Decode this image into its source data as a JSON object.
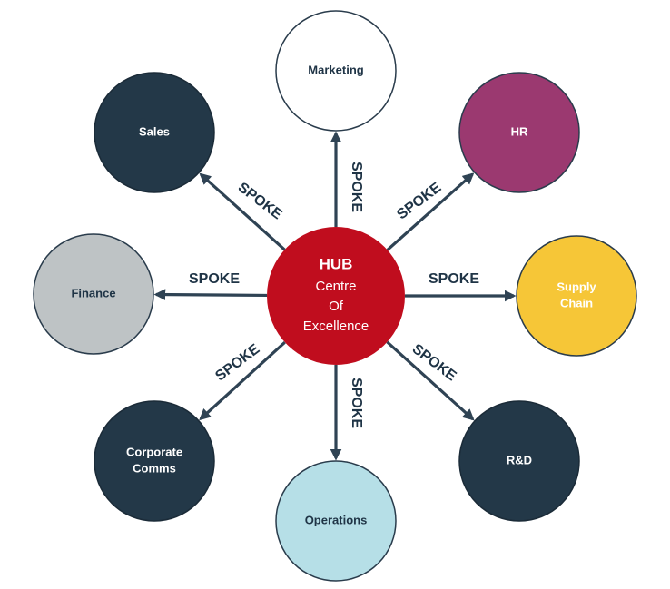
{
  "hub": {
    "title": "HUB",
    "lines": [
      "Centre",
      "Of",
      "Excellence"
    ],
    "color": "#c00d1e"
  },
  "spoke_label": "SPOKE",
  "arrow_color": "#2f4354",
  "nodes": [
    {
      "id": "marketing",
      "lines": [
        "Marketing"
      ],
      "fill": "#ffffff",
      "stroke": "#2a3c4c",
      "text_color": "#1f3446"
    },
    {
      "id": "hr",
      "lines": [
        "HR"
      ],
      "fill": "#9b3970",
      "stroke": "#2a3c4c",
      "text_color": "#ffffff"
    },
    {
      "id": "supply-chain",
      "lines": [
        "Supply",
        "Chain"
      ],
      "fill": "#f6c637",
      "stroke": "#2a3c4c",
      "text_color": "#ffffff"
    },
    {
      "id": "rnd",
      "lines": [
        "R&D"
      ],
      "fill": "#233848",
      "stroke": "#1b2b38",
      "text_color": "#ffffff"
    },
    {
      "id": "operations",
      "lines": [
        "Operations"
      ],
      "fill": "#b6dfe7",
      "stroke": "#2a3c4c",
      "text_color": "#1f3446"
    },
    {
      "id": "corporate-comms",
      "lines": [
        "Corporate",
        "Comms"
      ],
      "fill": "#233848",
      "stroke": "#1b2b38",
      "text_color": "#ffffff"
    },
    {
      "id": "finance",
      "lines": [
        "Finance"
      ],
      "fill": "#bec3c5",
      "stroke": "#2a3c4c",
      "text_color": "#1f3446"
    },
    {
      "id": "sales",
      "lines": [
        "Sales"
      ],
      "fill": "#233848",
      "stroke": "#1b2b38",
      "text_color": "#ffffff"
    }
  ]
}
